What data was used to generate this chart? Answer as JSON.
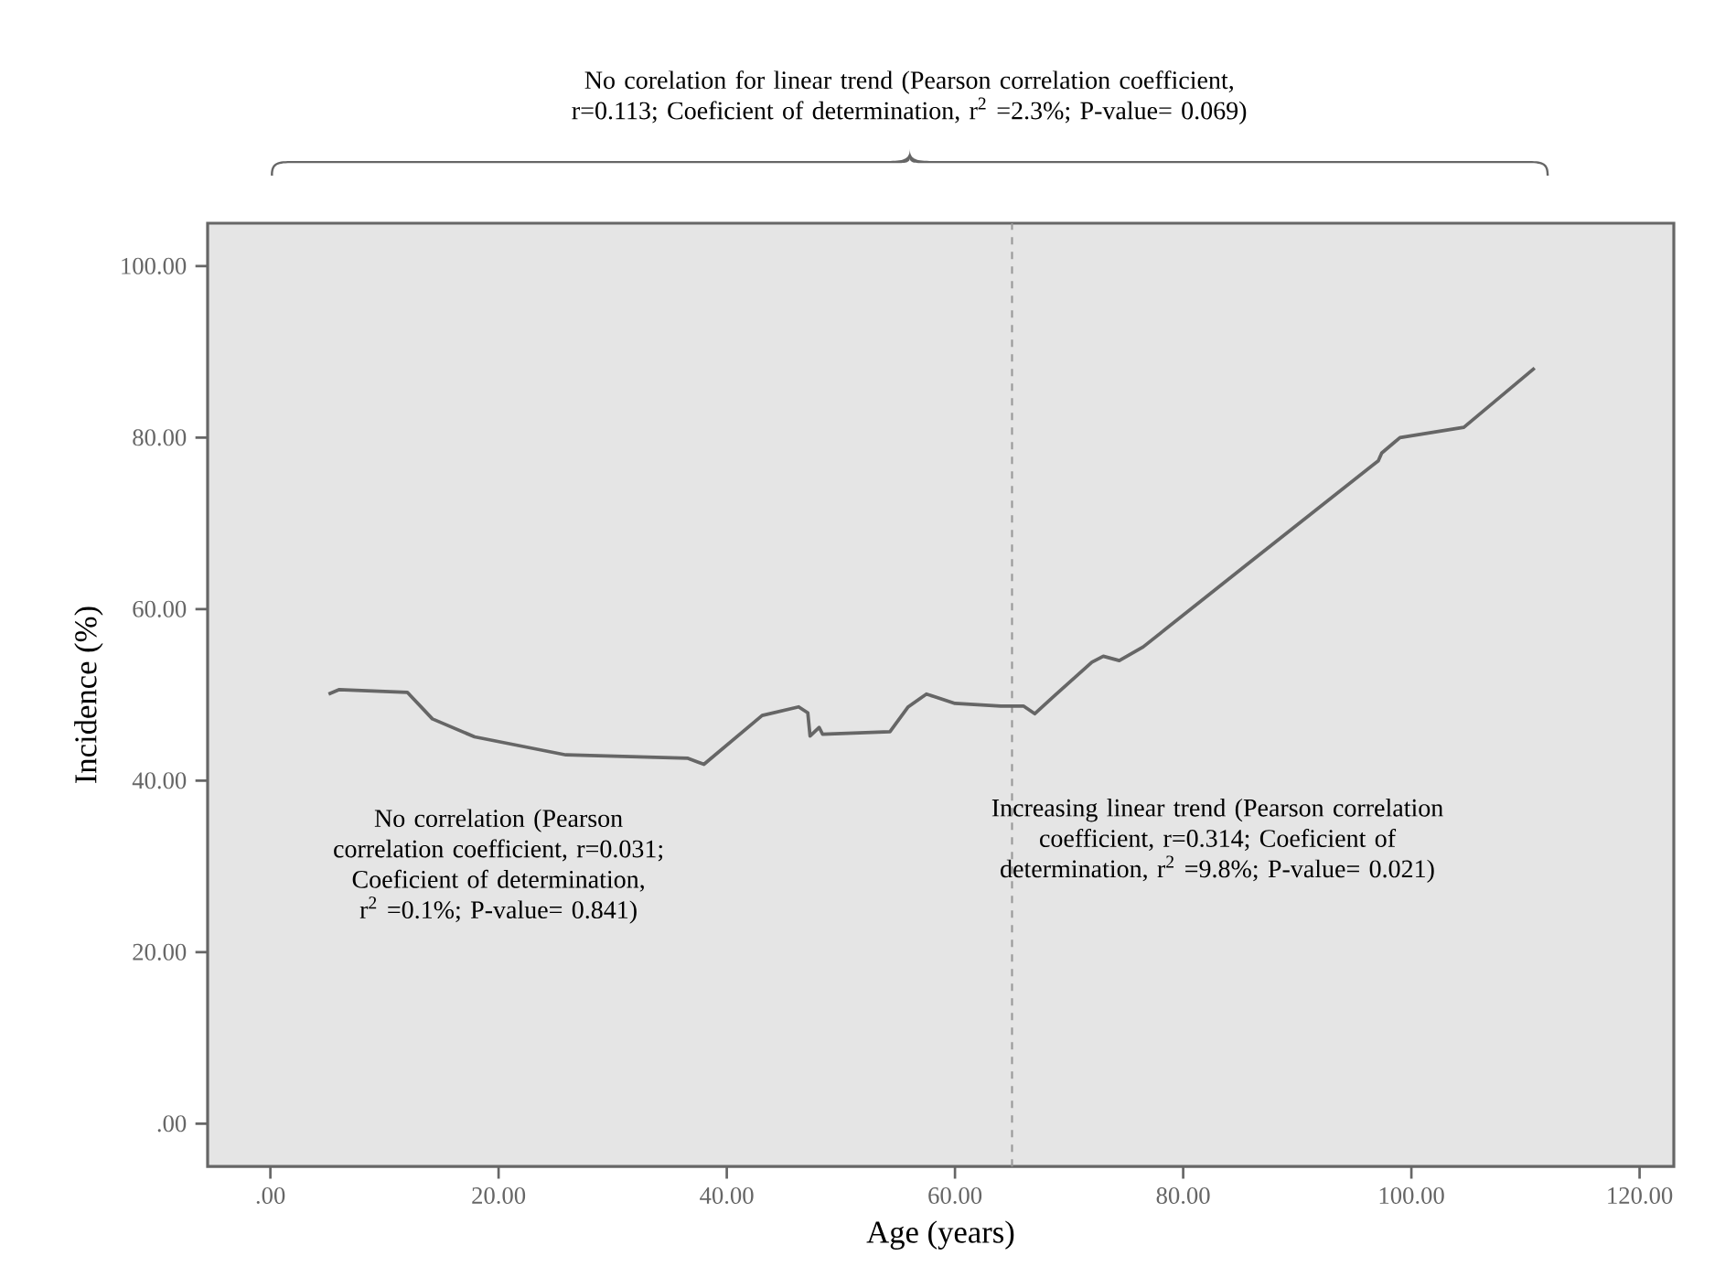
{
  "chart_data": {
    "type": "line",
    "xlabel": "Age (years)",
    "ylabel": "Incidence (%)",
    "xlim": [
      -5.5,
      123
    ],
    "ylim": [
      -5,
      105
    ],
    "xticks": [
      {
        "value": 0,
        "label": ".00"
      },
      {
        "value": 20,
        "label": "20.00"
      },
      {
        "value": 40,
        "label": "40.00"
      },
      {
        "value": 60,
        "label": "60.00"
      },
      {
        "value": 80,
        "label": "80.00"
      },
      {
        "value": 100,
        "label": "100.00"
      },
      {
        "value": 120,
        "label": "120.00"
      }
    ],
    "yticks": [
      {
        "value": 0,
        "label": ".00"
      },
      {
        "value": 20,
        "label": "20.00"
      },
      {
        "value": 40,
        "label": "40.00"
      },
      {
        "value": 60,
        "label": "60.00"
      },
      {
        "value": 80,
        "label": "80.00"
      },
      {
        "value": 100,
        "label": "100.00"
      }
    ],
    "series": [
      {
        "color": "#666666",
        "x": [
          5.1,
          6,
          12,
          14.2,
          17.9,
          25.9,
          36.6,
          38,
          43.1,
          46.3,
          47.1,
          47.3,
          48.1,
          48.4,
          54.3,
          55.9,
          57.5,
          60,
          64,
          66,
          67,
          68.8,
          72,
          73,
          74.4,
          76.5,
          85.4,
          97.1,
          97.4,
          99,
          104.6,
          110.8
        ],
        "values": [
          50.1,
          50.6,
          50.3,
          47.2,
          45.1,
          43,
          42.6,
          41.9,
          47.6,
          48.6,
          47.9,
          45.2,
          46.2,
          45.4,
          45.7,
          48.6,
          50.1,
          49,
          48.7,
          48.7,
          47.8,
          50,
          53.8,
          54.5,
          54,
          55.6,
          65,
          77.3,
          78.2,
          80,
          81.2,
          88.1
        ]
      }
    ],
    "marker": "none",
    "line_style": "solid",
    "ref_lines": [
      {
        "axis": "x",
        "value": 65,
        "color": "#999999",
        "line_style": "dashed"
      }
    ],
    "annotations": [
      "No corelation for linear trend (Pearson correlation coefficient, r=0.113; Coeficient of determination, r$^{2}$ =2.3%; P-value= 0.069)",
      "No correlation (Pearson correlation coefficient, r=0.031; Coeficient of determination, r$^{2}$ =0.1%; P-value= 0.841)",
      "Increasing linear trend (Pearson correlation coefficient, r=0.314; Coeficient of determination, r$^{2}$ =9.8%; P-value= 0.021)"
    ]
  }
}
